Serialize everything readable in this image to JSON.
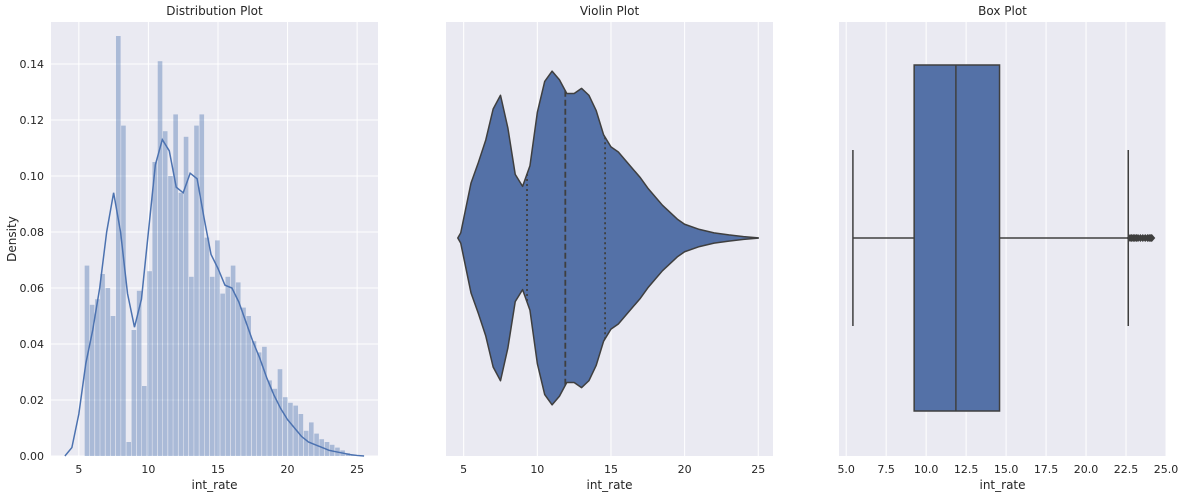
{
  "chart_data": [
    {
      "type": "bar",
      "title": "Distribution Plot",
      "xlabel": "int_rate",
      "ylabel": "Density",
      "xlim": [
        3.0,
        26.5
      ],
      "ylim": [
        0,
        0.155
      ],
      "xticks": [
        5,
        10,
        15,
        20,
        25
      ],
      "yticks": [
        0.0,
        0.02,
        0.04,
        0.06,
        0.08,
        0.1,
        0.12,
        0.14
      ],
      "ytick_labels": [
        "0.00",
        "0.02",
        "0.04",
        "0.06",
        "0.08",
        "0.10",
        "0.12",
        "0.14"
      ],
      "grid": true,
      "colors": {
        "bar": "#4c72b0",
        "kde": "#4c72b0",
        "background": "#eaeaf2",
        "grid": "#ffffff"
      },
      "bin_width": 0.375,
      "bins": [
        [
          5.42,
          0.068
        ],
        [
          5.79,
          0.054
        ],
        [
          6.17,
          0.056
        ],
        [
          6.54,
          0.065
        ],
        [
          6.92,
          0.06
        ],
        [
          7.29,
          0.05
        ],
        [
          7.67,
          0.15
        ],
        [
          8.04,
          0.118
        ],
        [
          8.42,
          0.005
        ],
        [
          8.79,
          0.045
        ],
        [
          9.17,
          0.059
        ],
        [
          9.54,
          0.025
        ],
        [
          9.92,
          0.066
        ],
        [
          10.29,
          0.105
        ],
        [
          10.67,
          0.141
        ],
        [
          11.04,
          0.116
        ],
        [
          11.42,
          0.1
        ],
        [
          11.79,
          0.122
        ],
        [
          12.17,
          0.094
        ],
        [
          12.54,
          0.114
        ],
        [
          12.92,
          0.064
        ],
        [
          13.29,
          0.118
        ],
        [
          13.67,
          0.122
        ],
        [
          14.04,
          0.078
        ],
        [
          14.42,
          0.064
        ],
        [
          14.79,
          0.077
        ],
        [
          15.17,
          0.058
        ],
        [
          15.54,
          0.064
        ],
        [
          15.92,
          0.068
        ],
        [
          16.29,
          0.062
        ],
        [
          16.67,
          0.053
        ],
        [
          17.04,
          0.05
        ],
        [
          17.42,
          0.041
        ],
        [
          17.79,
          0.037
        ],
        [
          18.17,
          0.039
        ],
        [
          18.54,
          0.027
        ],
        [
          18.92,
          0.024
        ],
        [
          19.29,
          0.031
        ],
        [
          19.67,
          0.021
        ],
        [
          20.04,
          0.019
        ],
        [
          20.42,
          0.018
        ],
        [
          20.79,
          0.015
        ],
        [
          21.17,
          0.009
        ],
        [
          21.54,
          0.012
        ],
        [
          21.92,
          0.008
        ],
        [
          22.29,
          0.006
        ],
        [
          22.67,
          0.005
        ],
        [
          23.04,
          0.004
        ],
        [
          23.42,
          0.003
        ],
        [
          23.79,
          0.002
        ],
        [
          24.17,
          0.001
        ],
        [
          24.54,
          0.0005
        ]
      ],
      "kde": [
        [
          4.0,
          0.0
        ],
        [
          4.5,
          0.003
        ],
        [
          5.0,
          0.015
        ],
        [
          5.5,
          0.033
        ],
        [
          6.0,
          0.045
        ],
        [
          6.5,
          0.06
        ],
        [
          7.0,
          0.08
        ],
        [
          7.5,
          0.094
        ],
        [
          8.0,
          0.08
        ],
        [
          8.5,
          0.058
        ],
        [
          9.0,
          0.046
        ],
        [
          9.5,
          0.056
        ],
        [
          10.0,
          0.08
        ],
        [
          10.5,
          0.104
        ],
        [
          11.0,
          0.113
        ],
        [
          11.5,
          0.109
        ],
        [
          12.0,
          0.096
        ],
        [
          12.5,
          0.094
        ],
        [
          13.0,
          0.101
        ],
        [
          13.5,
          0.099
        ],
        [
          14.0,
          0.085
        ],
        [
          14.5,
          0.072
        ],
        [
          15.0,
          0.067
        ],
        [
          15.5,
          0.061
        ],
        [
          16.0,
          0.06
        ],
        [
          16.5,
          0.055
        ],
        [
          17.0,
          0.048
        ],
        [
          17.5,
          0.041
        ],
        [
          18.0,
          0.035
        ],
        [
          18.5,
          0.028
        ],
        [
          19.0,
          0.022
        ],
        [
          19.5,
          0.017
        ],
        [
          20.0,
          0.013
        ],
        [
          20.5,
          0.01
        ],
        [
          21.0,
          0.007
        ],
        [
          21.5,
          0.005
        ],
        [
          22.0,
          0.004
        ],
        [
          22.5,
          0.003
        ],
        [
          23.0,
          0.002
        ],
        [
          23.5,
          0.0015
        ],
        [
          24.0,
          0.001
        ],
        [
          24.5,
          0.0005
        ],
        [
          25.0,
          0.0002
        ],
        [
          25.5,
          0.0
        ]
      ]
    },
    {
      "type": "violin",
      "title": "Violin Plot",
      "xlabel": "int_rate",
      "xlim": [
        3.8,
        26.0
      ],
      "xticks": [
        5,
        10,
        15,
        20,
        25
      ],
      "grid": true,
      "colors": {
        "body": "#5471a7",
        "edge": "#3f3f3f",
        "background": "#eaeaf2",
        "grid": "#ffffff"
      },
      "quartiles": {
        "q1": 9.3,
        "median": 11.9,
        "q3": 14.6
      },
      "half_width_profile": [
        [
          4.6,
          0.0
        ],
        [
          4.8,
          0.03
        ],
        [
          5.5,
          0.32
        ],
        [
          6.0,
          0.44
        ],
        [
          6.5,
          0.57
        ],
        [
          7.0,
          0.75
        ],
        [
          7.5,
          0.83
        ],
        [
          8.0,
          0.64
        ],
        [
          8.5,
          0.37
        ],
        [
          9.0,
          0.3
        ],
        [
          9.5,
          0.42
        ],
        [
          10.0,
          0.73
        ],
        [
          10.5,
          0.91
        ],
        [
          11.0,
          0.97
        ],
        [
          11.5,
          0.92
        ],
        [
          12.0,
          0.84
        ],
        [
          12.5,
          0.84
        ],
        [
          13.0,
          0.87
        ],
        [
          13.5,
          0.83
        ],
        [
          14.0,
          0.74
        ],
        [
          14.5,
          0.6
        ],
        [
          15.0,
          0.53
        ],
        [
          15.5,
          0.5
        ],
        [
          16.0,
          0.45
        ],
        [
          16.5,
          0.4
        ],
        [
          17.0,
          0.35
        ],
        [
          17.5,
          0.29
        ],
        [
          18.0,
          0.24
        ],
        [
          18.5,
          0.19
        ],
        [
          19.0,
          0.15
        ],
        [
          19.5,
          0.11
        ],
        [
          20.0,
          0.08
        ],
        [
          21.0,
          0.05
        ],
        [
          22.0,
          0.03
        ],
        [
          23.0,
          0.018
        ],
        [
          24.0,
          0.008
        ],
        [
          25.0,
          0.001
        ]
      ]
    },
    {
      "type": "box",
      "title": "Box Plot",
      "xlabel": "int_rate",
      "xlim": [
        4.55,
        25.0
      ],
      "xticks": [
        5.0,
        7.5,
        10.0,
        12.5,
        15.0,
        17.5,
        20.0,
        22.5,
        25.0
      ],
      "xtick_labels": [
        "5.0",
        "7.5",
        "10.0",
        "12.5",
        "15.0",
        "17.5",
        "20.0",
        "22.5",
        "25.0"
      ],
      "grid": true,
      "colors": {
        "box": "#5471a7",
        "edge": "#3f3f3f",
        "background": "#eaeaf2",
        "grid": "#ffffff"
      },
      "stats": {
        "whislo": 5.42,
        "q1": 9.25,
        "median": 11.86,
        "q3": 14.59,
        "whishi": 22.64
      },
      "fliers": [
        22.75,
        22.85,
        22.95,
        23.05,
        23.15,
        23.25,
        23.4,
        23.55,
        23.7,
        23.85,
        23.95,
        24.05,
        24.11
      ]
    }
  ]
}
